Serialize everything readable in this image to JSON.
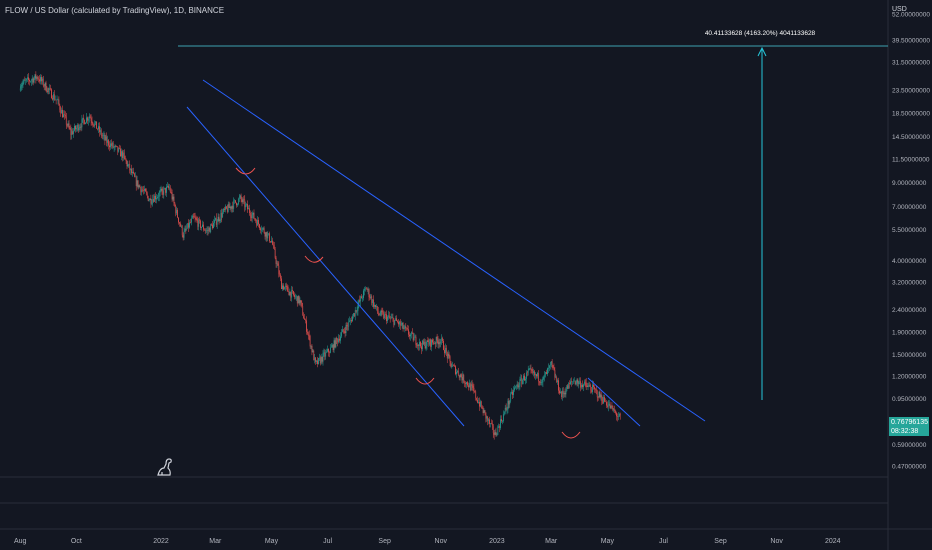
{
  "header": {
    "symbol_title": "FLOW / US Dollar (calculated by TradingView), 1D, BINANCE",
    "currency": "USD"
  },
  "price_label": {
    "value": "0.76796135",
    "countdown": "08:32:38",
    "color": "#26a69a"
  },
  "target_annotation": {
    "text": "40.41133628 (4163.20%) 4041133628"
  },
  "icons": {
    "logo": "tradingview-dino-icon"
  },
  "chart_data": {
    "type": "candlestick",
    "title": "FLOW / US Dollar (calculated by TradingView), 1D, BINANCE",
    "y_scale": "log",
    "ylim": [
      0.42,
      60
    ],
    "y_ticks": [
      52,
      39.5,
      31.5,
      23.5,
      18.5,
      14.5,
      11.5,
      9,
      7,
      5.5,
      4,
      3.2,
      2.4,
      1.9,
      1.5,
      1.2,
      0.95,
      0.59,
      0.47
    ],
    "y_tick_labels": [
      "52.00000000",
      "39.50000000",
      "31.50000000",
      "23.50000000",
      "18.50000000",
      "14.50000000",
      "11.50000000",
      "9.00000000",
      "7.00000000",
      "5.50000000",
      "4.00000000",
      "3.20000000",
      "2.40000000",
      "1.90000000",
      "1.50000000",
      "1.20000000",
      "0.95000000",
      "0.59000000",
      "0.47000000"
    ],
    "x_tick_labels": [
      "Aug",
      "Oct",
      "2022",
      "Mar",
      "May",
      "Jul",
      "Sep",
      "Nov",
      "2023",
      "Mar",
      "May",
      "Jul",
      "Sep",
      "Nov",
      "2024"
    ],
    "x_tick_dates": [
      "2021-08-01",
      "2021-10-01",
      "2022-01-01",
      "2022-03-01",
      "2022-05-01",
      "2022-07-01",
      "2022-09-01",
      "2022-11-01",
      "2023-01-01",
      "2023-03-01",
      "2023-05-01",
      "2023-07-01",
      "2023-09-01",
      "2023-11-01",
      "2024-01-01"
    ],
    "xlim": [
      "2021-07-10",
      "2024-03-01"
    ],
    "up_color": "#26a69a",
    "down_color": "#ef5350",
    "price_path": [
      {
        "date": "2021-08-01",
        "close": 25
      },
      {
        "date": "2021-08-20",
        "close": 27
      },
      {
        "date": "2021-09-10",
        "close": 21
      },
      {
        "date": "2021-09-25",
        "close": 15
      },
      {
        "date": "2021-10-15",
        "close": 18
      },
      {
        "date": "2021-11-01",
        "close": 14
      },
      {
        "date": "2021-11-20",
        "close": 12
      },
      {
        "date": "2021-12-05",
        "close": 9
      },
      {
        "date": "2021-12-20",
        "close": 7.5
      },
      {
        "date": "2022-01-10",
        "close": 8.5
      },
      {
        "date": "2022-01-25",
        "close": 5.2
      },
      {
        "date": "2022-02-05",
        "close": 6.2
      },
      {
        "date": "2022-02-20",
        "close": 5.4
      },
      {
        "date": "2022-03-10",
        "close": 6.6
      },
      {
        "date": "2022-03-28",
        "close": 7.6
      },
      {
        "date": "2022-04-15",
        "close": 6.0
      },
      {
        "date": "2022-05-01",
        "close": 4.9
      },
      {
        "date": "2022-05-12",
        "close": 3.1
      },
      {
        "date": "2022-06-01",
        "close": 2.6
      },
      {
        "date": "2022-06-18",
        "close": 1.35
      },
      {
        "date": "2022-07-05",
        "close": 1.6
      },
      {
        "date": "2022-07-25",
        "close": 2.1
      },
      {
        "date": "2022-08-12",
        "close": 3.0
      },
      {
        "date": "2022-08-25",
        "close": 2.3
      },
      {
        "date": "2022-09-15",
        "close": 2.1
      },
      {
        "date": "2022-10-10",
        "close": 1.65
      },
      {
        "date": "2022-11-01",
        "close": 1.75
      },
      {
        "date": "2022-11-12",
        "close": 1.35
      },
      {
        "date": "2022-12-05",
        "close": 1.05
      },
      {
        "date": "2022-12-30",
        "close": 0.65
      },
      {
        "date": "2023-01-20",
        "close": 1.05
      },
      {
        "date": "2023-02-05",
        "close": 1.25
      },
      {
        "date": "2023-02-20",
        "close": 1.15
      },
      {
        "date": "2023-03-01",
        "close": 1.35
      },
      {
        "date": "2023-03-12",
        "close": 0.98
      },
      {
        "date": "2023-03-25",
        "close": 1.15
      },
      {
        "date": "2023-04-15",
        "close": 1.05
      },
      {
        "date": "2023-05-01",
        "close": 0.9
      },
      {
        "date": "2023-05-15",
        "close": 0.77
      }
    ],
    "last_price": 0.76796135,
    "target": {
      "price": 40.41133628,
      "percent": "4163.20%"
    }
  }
}
